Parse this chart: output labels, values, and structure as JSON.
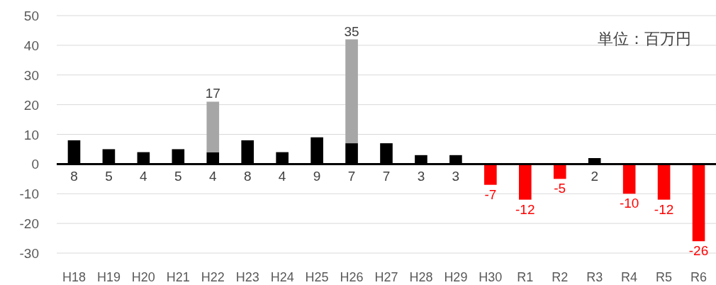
{
  "chart_data": {
    "type": "bar",
    "stacked": true,
    "categories": [
      "H18",
      "H19",
      "H20",
      "H21",
      "H22",
      "H23",
      "H24",
      "H25",
      "H26",
      "H27",
      "H28",
      "H29",
      "H30",
      "R1",
      "R2",
      "R3",
      "R4",
      "R5",
      "R6"
    ],
    "series": [
      {
        "colors": [
          "#000000",
          "#000000",
          "#000000",
          "#000000",
          "#000000",
          "#000000",
          "#000000",
          "#000000",
          "#000000",
          "#000000",
          "#000000",
          "#000000",
          "#ff0000",
          "#ff0000",
          "#ff0000",
          "#000000",
          "#ff0000",
          "#ff0000",
          "#ff0000"
        ],
        "values": [
          8,
          5,
          4,
          5,
          4,
          8,
          4,
          9,
          7,
          7,
          3,
          3,
          -7,
          -12,
          -5,
          2,
          -10,
          -12,
          -26
        ]
      },
      {
        "color": "#a6a6a6",
        "values": [
          null,
          null,
          null,
          null,
          17,
          null,
          null,
          null,
          35,
          null,
          null,
          null,
          null,
          null,
          null,
          null,
          null,
          null,
          null
        ]
      }
    ],
    "ylim": [
      -30,
      50
    ],
    "yticks": [
      -30,
      -20,
      -10,
      0,
      10,
      20,
      30,
      40,
      50
    ],
    "grid": "y",
    "data_labels": true,
    "annotations": [
      "単位：百万円"
    ]
  }
}
